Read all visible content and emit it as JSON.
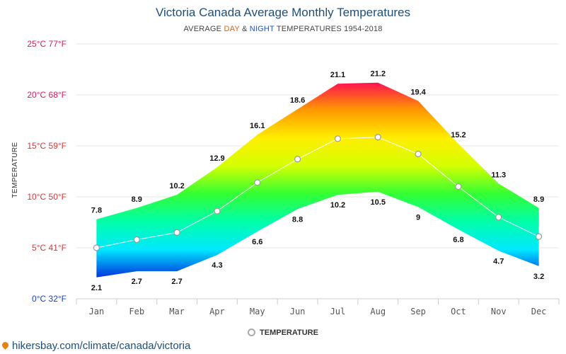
{
  "header": {
    "title": "Victoria Canada Average Monthly Temperatures",
    "subtitle_prefix": "AVERAGE ",
    "subtitle_day": "DAY",
    "subtitle_amp": " & ",
    "subtitle_night": "NIGHT",
    "subtitle_suffix": " TEMPERATURES 1954-2018"
  },
  "legend": {
    "label": "TEMPERATURE"
  },
  "source": {
    "text": "hikersbay.com/climate/canada/victoria"
  },
  "colors": {
    "day_accent": "#e8600d",
    "night_accent": "#1a55c9",
    "title": "#1f4e79",
    "gradient": [
      "#ff1050",
      "#ff9900",
      "#ffee00",
      "#d4ff00",
      "#33ff33",
      "#00ffaa",
      "#00e8ff",
      "#0033dd"
    ]
  },
  "chart_data": {
    "type": "area",
    "title": "Victoria Canada Average Monthly Temperatures",
    "subtitle": "AVERAGE DAY & NIGHT TEMPERATURES 1954-2018",
    "ylabel": "TEMPERATURE",
    "xlabel": "",
    "ylim": [
      0,
      25
    ],
    "yticks": [
      {
        "value": 0,
        "label": "0°C 32°F",
        "color": "#1a3fc4"
      },
      {
        "value": 5,
        "label": "5°C 41°F",
        "color": "#d23a3a"
      },
      {
        "value": 10,
        "label": "10°C 50°F",
        "color": "#d23a3a"
      },
      {
        "value": 15,
        "label": "15°C 59°F",
        "color": "#d23a3a"
      },
      {
        "value": 20,
        "label": "20°C 68°F",
        "color": "#d81b60"
      },
      {
        "value": 25,
        "label": "25°C 77°F",
        "color": "#d81b60"
      }
    ],
    "categories": [
      "Jan",
      "Feb",
      "Mar",
      "Apr",
      "May",
      "Jun",
      "Jul",
      "Aug",
      "Sep",
      "Oct",
      "Nov",
      "Dec"
    ],
    "series": [
      {
        "name": "DAY",
        "values": [
          7.8,
          8.9,
          10.2,
          12.9,
          16.1,
          18.6,
          21.1,
          21.2,
          19.4,
          15.2,
          11.3,
          8.9
        ]
      },
      {
        "name": "NIGHT",
        "values": [
          2.1,
          2.7,
          2.7,
          4.3,
          6.6,
          8.8,
          10.2,
          10.5,
          9,
          6.8,
          4.7,
          3.2
        ]
      },
      {
        "name": "TEMPERATURE",
        "values": [
          5.0,
          5.8,
          6.5,
          8.6,
          11.4,
          13.7,
          15.7,
          15.85,
          14.2,
          11.0,
          8.0,
          6.1
        ]
      }
    ],
    "grid": true,
    "legend_position": "bottom-center"
  }
}
